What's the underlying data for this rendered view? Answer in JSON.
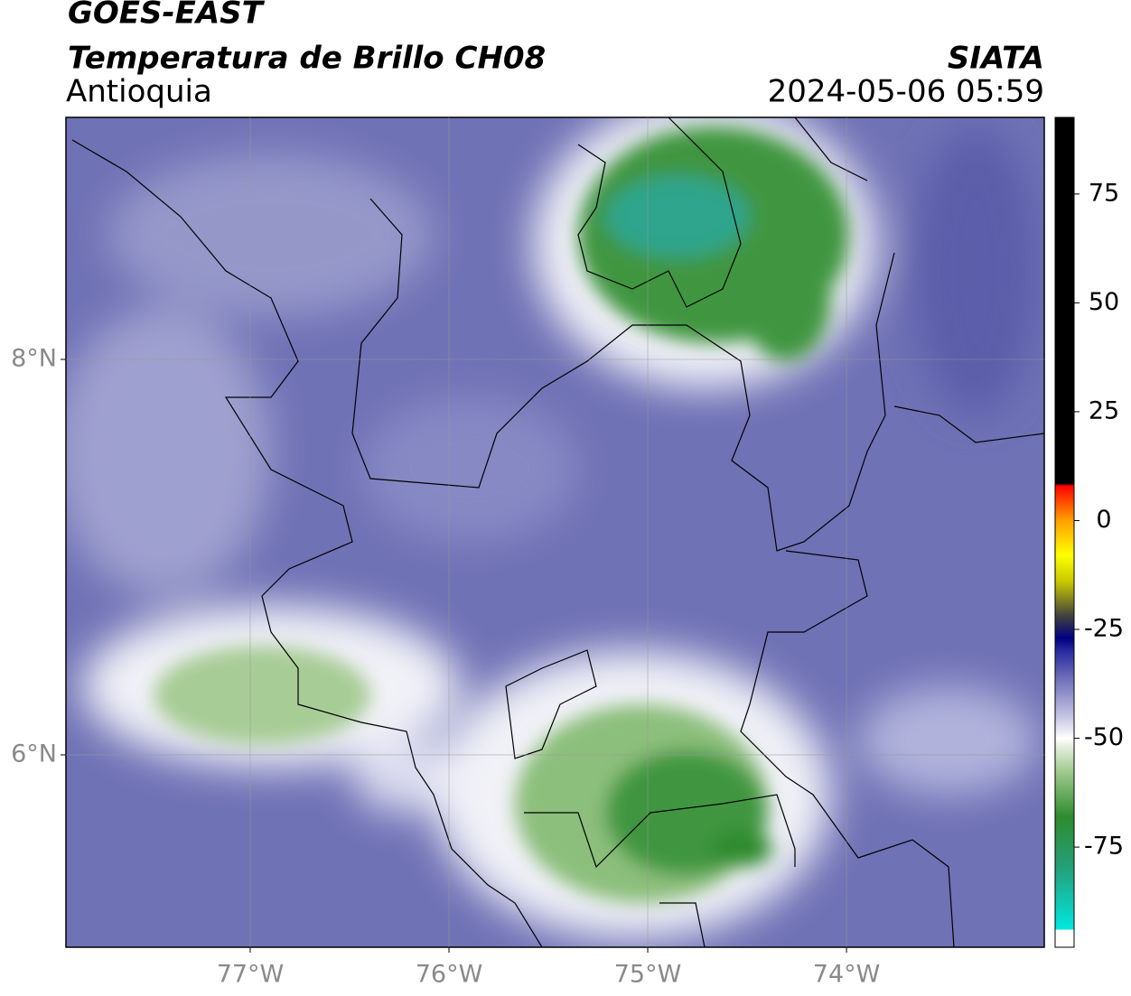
{
  "header": {
    "title": "GOES-EAST",
    "subtitle": "Temperatura de Brillo CH08",
    "region": "Antioquia",
    "source": "SIATA",
    "timestamp": "2024-05-06 05:59"
  },
  "map": {
    "lon_range": [
      -77.927,
      -73.005
    ],
    "lat_range": [
      5.027,
      9.224
    ],
    "lon_ticks": [
      {
        "value": -77,
        "label": "77°W"
      },
      {
        "value": -76,
        "label": "76°W"
      },
      {
        "value": -75,
        "label": "75°W"
      },
      {
        "value": -74,
        "label": "74°W"
      }
    ],
    "lat_ticks": [
      {
        "value": 8,
        "label": "8°N"
      },
      {
        "value": 6,
        "label": "6°N"
      }
    ],
    "grid": true
  },
  "colorbar": {
    "lim": [
      -98,
      92.6
    ],
    "ticks": [
      75,
      50,
      25,
      0,
      -25,
      -50,
      -75
    ],
    "stops": [
      {
        "value": -98,
        "color": "#ffffff"
      },
      {
        "value": -94,
        "color": "#ffffff"
      },
      {
        "value": -93.9,
        "color": "#00e8e0"
      },
      {
        "value": -80,
        "color": "#24a07c"
      },
      {
        "value": -68,
        "color": "#2e8b2e"
      },
      {
        "value": -58,
        "color": "#9cc88a"
      },
      {
        "value": -52,
        "color": "#e4eedc"
      },
      {
        "value": -50,
        "color": "#ffffff"
      },
      {
        "value": -45,
        "color": "#c4c4e4"
      },
      {
        "value": -36,
        "color": "#6c6cb8"
      },
      {
        "value": -30,
        "color": "#2a2aa0"
      },
      {
        "value": -27,
        "color": "#000080"
      },
      {
        "value": -22,
        "color": "#404040"
      },
      {
        "value": -14,
        "color": "#c8c800"
      },
      {
        "value": -8,
        "color": "#ffff00"
      },
      {
        "value": 0,
        "color": "#ffa000"
      },
      {
        "value": 8,
        "color": "#ff0000"
      },
      {
        "value": 8.5,
        "color": "#000000"
      },
      {
        "value": 92.6,
        "color": "#000000"
      }
    ]
  }
}
